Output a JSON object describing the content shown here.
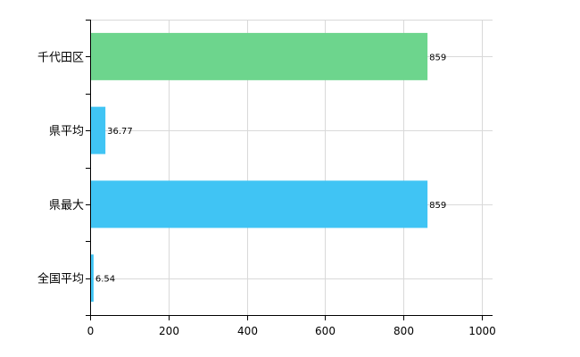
{
  "chart_data": {
    "type": "bar",
    "orientation": "horizontal",
    "categories": [
      "千代田区",
      "県平均",
      "県最大",
      "全国平均"
    ],
    "values": [
      859,
      36.77,
      859,
      6.54
    ],
    "value_labels": [
      "859",
      "36.77",
      "859",
      "6.54"
    ],
    "bar_colors": [
      "#6dd58d",
      "#40c4f4",
      "#40c4f4",
      "#40c4f4"
    ],
    "xlim": [
      0,
      1000
    ],
    "xticks": [
      0,
      200,
      400,
      600,
      800,
      1000
    ],
    "grid": true,
    "title": "",
    "xlabel": "",
    "ylabel": ""
  }
}
